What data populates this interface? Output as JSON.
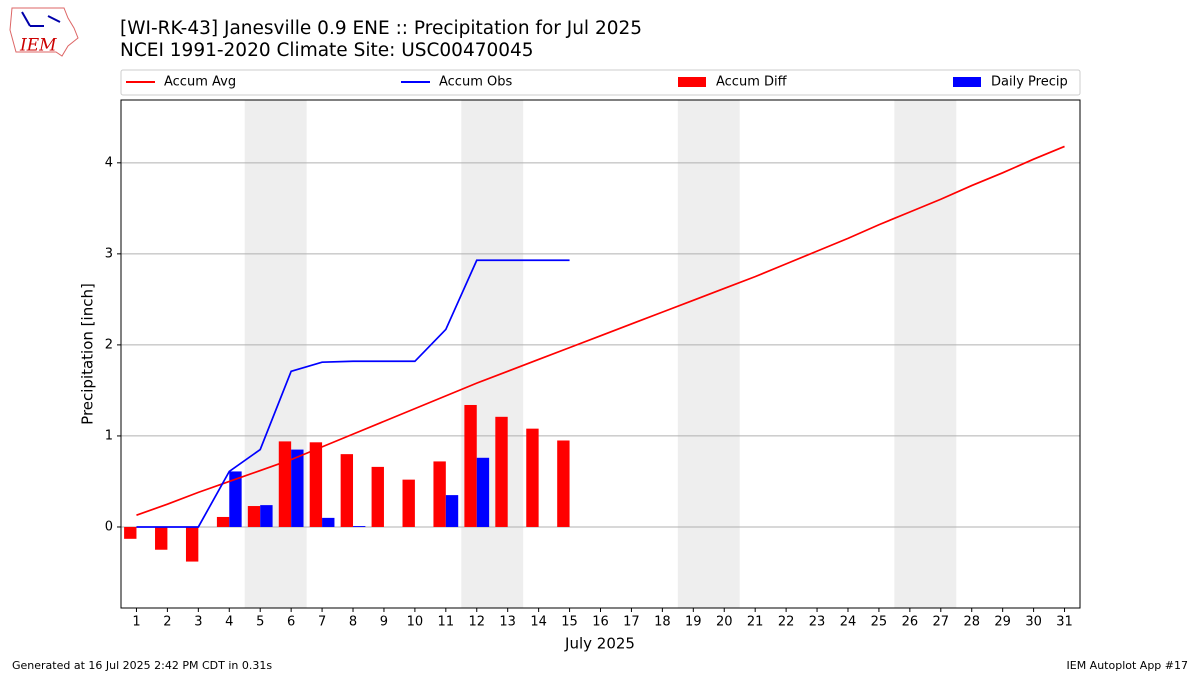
{
  "chart_data": {
    "type": "bar",
    "title": "[WI-RK-43] Janesville 0.9 ENE :: Precipitation for Jul 2025",
    "subtitle": "NCEI 1991-2020 Climate Site: USC00470045",
    "x_label": "July 2025",
    "y_label": "Precipitation [inch]",
    "x": [
      1,
      2,
      3,
      4,
      5,
      6,
      7,
      8,
      9,
      10,
      11,
      12,
      13,
      14,
      15,
      16,
      17,
      18,
      19,
      20,
      21,
      22,
      23,
      24,
      25,
      26,
      27,
      28,
      29,
      30,
      31
    ],
    "xlim": [
      0.5,
      31.5
    ],
    "ylim": [
      -0.89,
      4.69
    ],
    "xticks": [
      1,
      2,
      3,
      4,
      5,
      6,
      7,
      8,
      9,
      10,
      11,
      12,
      13,
      14,
      15,
      16,
      17,
      18,
      19,
      20,
      21,
      22,
      23,
      24,
      25,
      26,
      27,
      28,
      29,
      30,
      31
    ],
    "yticks": [
      0,
      1,
      2,
      3,
      4
    ],
    "grid": true,
    "legend": "top",
    "highlight_spans": [
      [
        4.5,
        6.5
      ],
      [
        11.5,
        13.5
      ],
      [
        18.5,
        20.5
      ],
      [
        25.5,
        27.5
      ]
    ],
    "highlight_color": "#eeeeee",
    "series": [
      {
        "name": "Accum Avg",
        "type": "line",
        "color": "#ff0000",
        "values": [
          0.13,
          0.25,
          0.38,
          0.5,
          0.62,
          0.74,
          0.88,
          1.02,
          1.16,
          1.3,
          1.44,
          1.58,
          1.71,
          1.84,
          1.97,
          2.1,
          2.23,
          2.36,
          2.49,
          2.62,
          2.75,
          2.89,
          3.03,
          3.17,
          3.32,
          3.46,
          3.6,
          3.75,
          3.89,
          4.04,
          4.18
        ]
      },
      {
        "name": "Accum Obs",
        "type": "line",
        "color": "#0000ff",
        "values": [
          0,
          0,
          0,
          0.61,
          0.85,
          1.71,
          1.81,
          1.82,
          1.82,
          1.82,
          2.17,
          2.93,
          2.93,
          2.93,
          2.93,
          null,
          null,
          null,
          null,
          null,
          null,
          null,
          null,
          null,
          null,
          null,
          null,
          null,
          null,
          null,
          null
        ]
      },
      {
        "name": "Accum Diff",
        "type": "bar",
        "color": "#ff0000",
        "offset": "left",
        "values": [
          -0.13,
          -0.25,
          -0.38,
          0.11,
          0.23,
          0.94,
          0.93,
          0.8,
          0.66,
          0.52,
          0.72,
          1.34,
          1.21,
          1.08,
          0.95,
          null,
          null,
          null,
          null,
          null,
          null,
          null,
          null,
          null,
          null,
          null,
          null,
          null,
          null,
          null,
          null
        ]
      },
      {
        "name": "Daily Precip",
        "type": "bar",
        "color": "#0000ff",
        "offset": "right",
        "values": [
          0,
          0,
          0,
          0.61,
          0.24,
          0.85,
          0.1,
          0.01,
          0,
          0,
          0.35,
          0.76,
          0,
          0,
          0,
          null,
          null,
          null,
          null,
          null,
          null,
          null,
          null,
          null,
          null,
          null,
          null,
          null,
          null,
          null,
          null
        ]
      }
    ]
  },
  "logo": "IEM",
  "footer_left": "Generated at 16 Jul 2025 2:42 PM CDT in 0.31s",
  "footer_right": "IEM Autoplot App #17"
}
